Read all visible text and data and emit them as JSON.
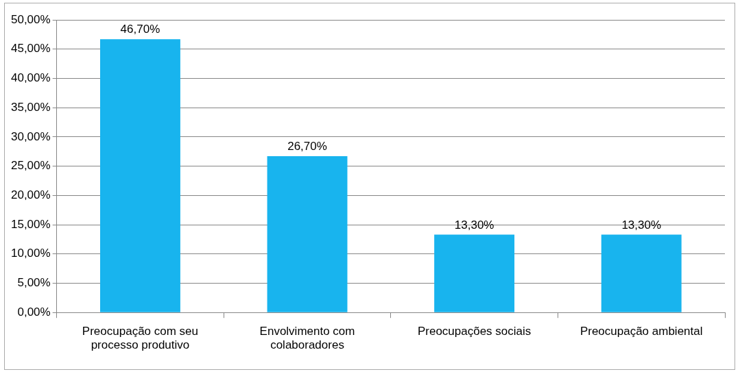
{
  "chart_data": {
    "type": "bar",
    "categories": [
      "Preocupação com seu processo produtivo",
      "Envolvimento com colaboradores",
      "Preocupações sociais",
      "Preocupação ambiental"
    ],
    "values": [
      46.7,
      26.7,
      13.3,
      13.3
    ],
    "color": "#18b4ee",
    "value_labels": [
      "46,70%",
      "26,70%",
      "13,30%",
      "13,30%"
    ],
    "ylim": [
      0,
      50
    ],
    "yticks": [
      {
        "value": 0,
        "label": "0,00%"
      },
      {
        "value": 5,
        "label": "5,00%"
      },
      {
        "value": 10,
        "label": "10,00%"
      },
      {
        "value": 15,
        "label": "15,00%"
      },
      {
        "value": 20,
        "label": "20,00%"
      },
      {
        "value": 25,
        "label": "25,00%"
      },
      {
        "value": 30,
        "label": "30,00%"
      },
      {
        "value": 35,
        "label": "35,00%"
      },
      {
        "value": 40,
        "label": "40,00%"
      },
      {
        "value": 45,
        "label": "45,00%"
      },
      {
        "value": 50,
        "label": "50,00%"
      }
    ],
    "grid": "y",
    "legend": false
  }
}
